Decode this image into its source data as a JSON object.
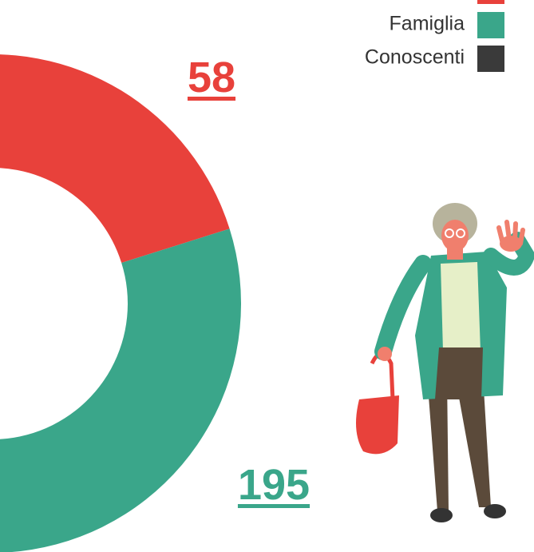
{
  "chart_data": {
    "type": "donut",
    "series": [
      {
        "name": null,
        "color": "#e8413b",
        "value": 58
      },
      {
        "name": "Famiglia",
        "color": "#3aa68a",
        "value": 195
      },
      {
        "name": "Conoscenti",
        "color": "#3a3a3a",
        "value": null
      }
    ]
  }
}
